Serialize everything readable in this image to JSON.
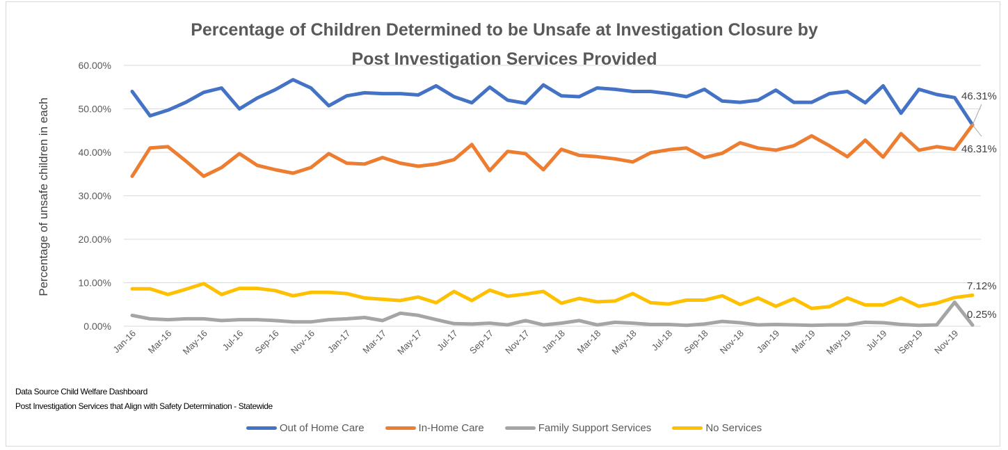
{
  "chart_data": {
    "type": "line",
    "title_line1": "Percentage of Children Determined to be Unsafe at Investigation Closure by",
    "title_line2": "Post Investigation Services Provided",
    "ylabel": "Percentage of unsafe children in each",
    "ylim": [
      0,
      60
    ],
    "yticks": [
      0,
      10,
      20,
      30,
      40,
      50,
      60
    ],
    "ytick_labels": [
      "0.00%",
      "10.00%",
      "20.00%",
      "30.00%",
      "40.00%",
      "50.00%",
      "60.00%"
    ],
    "grid": true,
    "x": [
      "Jan-16",
      "Feb-16",
      "Mar-16",
      "Apr-16",
      "May-16",
      "Jun-16",
      "Jul-16",
      "Aug-16",
      "Sep-16",
      "Oct-16",
      "Nov-16",
      "Dec-16",
      "Jan-17",
      "Feb-17",
      "Mar-17",
      "Apr-17",
      "May-17",
      "Jun-17",
      "Jul-17",
      "Aug-17",
      "Sep-17",
      "Oct-17",
      "Nov-17",
      "Dec-17",
      "Jan-18",
      "Feb-18",
      "Mar-18",
      "Apr-18",
      "May-18",
      "Jun-18",
      "Jul-18",
      "Aug-18",
      "Sep-18",
      "Oct-18",
      "Nov-18",
      "Dec-18",
      "Jan-19",
      "Feb-19",
      "Mar-19",
      "Apr-19",
      "May-19",
      "Jun-19",
      "Jul-19",
      "Aug-19",
      "Sep-19",
      "Oct-19",
      "Nov-19",
      "Dec-19"
    ],
    "xtick_labels": [
      "Jan-16",
      "Mar-16",
      "May-16",
      "Jul-16",
      "Sep-16",
      "Nov-16",
      "Jan-17",
      "Mar-17",
      "May-17",
      "Jul-17",
      "Sep-17",
      "Nov-17",
      "Jan-18",
      "Mar-18",
      "May-18",
      "Jul-18",
      "Sep-18",
      "Nov-18",
      "Jan-19",
      "Mar-19",
      "May-19",
      "Jul-19",
      "Sep-19",
      "Nov-19"
    ],
    "series": [
      {
        "name": "Out of Home Care",
        "color": "#4472c4",
        "values": [
          54.0,
          48.4,
          49.7,
          51.5,
          53.8,
          54.8,
          50.0,
          52.5,
          54.4,
          56.7,
          54.8,
          50.7,
          53.0,
          53.7,
          53.5,
          53.5,
          53.2,
          55.3,
          52.8,
          51.4,
          55.0,
          52.0,
          51.3,
          55.5,
          53.0,
          52.8,
          54.8,
          54.5,
          54.0,
          54.0,
          53.5,
          52.8,
          54.5,
          51.8,
          51.5,
          52.0,
          54.3,
          51.5,
          51.5,
          53.5,
          54.0,
          51.4,
          55.3,
          49.0,
          54.5,
          53.3,
          52.6,
          46.31
        ]
      },
      {
        "name": "In-Home Care",
        "color": "#ed7d31",
        "values": [
          34.5,
          41.0,
          41.3,
          38.0,
          34.5,
          36.5,
          39.7,
          37.0,
          36.0,
          35.2,
          36.5,
          39.7,
          37.5,
          37.3,
          38.8,
          37.5,
          36.8,
          37.3,
          38.3,
          41.8,
          35.8,
          40.2,
          39.7,
          36.0,
          40.7,
          39.3,
          39.0,
          38.5,
          37.8,
          39.9,
          40.6,
          41.0,
          38.8,
          39.8,
          42.2,
          41.0,
          40.5,
          41.5,
          43.8,
          41.5,
          39.0,
          42.8,
          38.9,
          44.3,
          40.5,
          41.3,
          40.7,
          46.31
        ]
      },
      {
        "name": "Family Support Services",
        "color": "#a5a5a5",
        "values": [
          2.5,
          1.7,
          1.5,
          1.7,
          1.7,
          1.3,
          1.5,
          1.5,
          1.3,
          1.0,
          1.0,
          1.5,
          1.7,
          2.0,
          1.3,
          3.0,
          2.5,
          1.5,
          0.6,
          0.5,
          0.7,
          0.3,
          1.3,
          0.3,
          0.7,
          1.3,
          0.3,
          0.9,
          0.7,
          0.4,
          0.4,
          0.2,
          0.5,
          1.1,
          0.8,
          0.3,
          0.4,
          0.3,
          0.2,
          0.3,
          0.3,
          0.9,
          0.8,
          0.4,
          0.2,
          0.3,
          5.5,
          0.25
        ]
      },
      {
        "name": "No Services",
        "color": "#ffc000",
        "values": [
          8.6,
          8.6,
          7.3,
          8.5,
          9.8,
          7.3,
          8.7,
          8.7,
          8.2,
          7.0,
          7.8,
          7.8,
          7.5,
          6.5,
          6.2,
          5.9,
          6.7,
          5.4,
          8.0,
          5.9,
          8.3,
          6.9,
          7.4,
          8.0,
          5.3,
          6.4,
          5.6,
          5.8,
          7.5,
          5.4,
          5.1,
          6.0,
          6.0,
          7.0,
          5.0,
          6.5,
          4.6,
          6.3,
          4.1,
          4.5,
          6.5,
          4.9,
          4.9,
          6.5,
          4.6,
          5.3,
          6.6,
          7.12
        ]
      }
    ],
    "annotations": {
      "out_of_home_last": "46.31%",
      "in_home_last": "46.31%",
      "no_services_last": "7.12%",
      "family_support_last": "0.25%"
    }
  },
  "notes": {
    "line1": "Data Source Child Welfare Dashboard",
    "line2": "Post Investigation Services that Align with Safety Determination - Statewide"
  },
  "legend": [
    {
      "label": "Out of Home Care",
      "color": "#4472c4"
    },
    {
      "label": "In-Home Care",
      "color": "#ed7d31"
    },
    {
      "label": "Family Support Services",
      "color": "#a5a5a5"
    },
    {
      "label": "No Services",
      "color": "#ffc000"
    }
  ]
}
